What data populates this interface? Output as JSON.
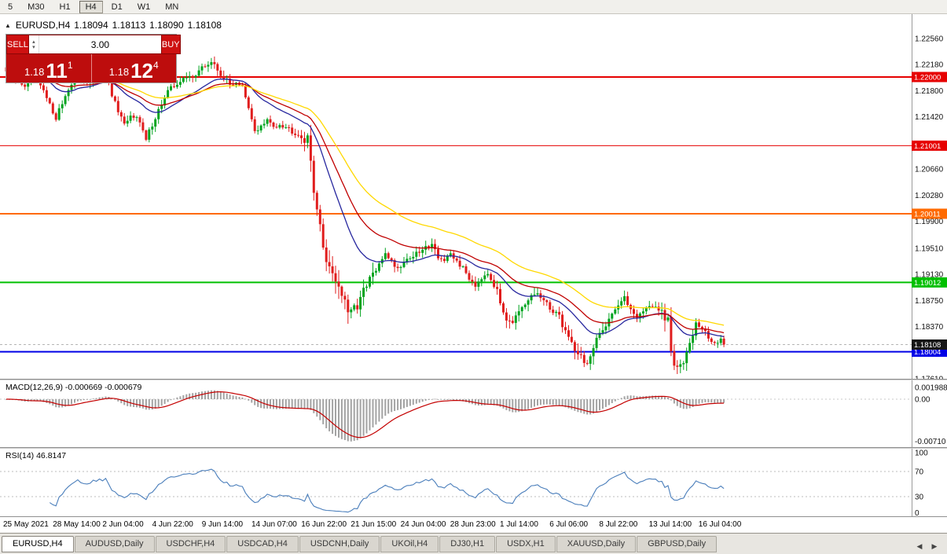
{
  "colors": {
    "up": "#00a31e",
    "down": "#e01d1d",
    "macd_hist": "#a3a3a3",
    "macd_signal": "#c40000",
    "rsi_line": "#4a7ebb",
    "axis_line": "#9b9b9b"
  },
  "toolbar": {
    "periods": [
      "5",
      "M30",
      "H1",
      "H4",
      "D1",
      "W1",
      "MN"
    ],
    "active": "H4"
  },
  "header": {
    "symbol_period": "EURUSD,H4",
    "open": "1.18094",
    "high": "1.18113",
    "low": "1.18090",
    "close": "1.18108"
  },
  "one_click": {
    "sell_label": "SELL",
    "buy_label": "BUY",
    "volume": "3.00",
    "bid": {
      "big": "1.18",
      "pips": "11",
      "sup": "1"
    },
    "ask": {
      "big": "1.18",
      "pips": "12",
      "sup": "4"
    }
  },
  "macd": {
    "label": "MACD(12,26,9) -0.000669 -0.000679",
    "ticks": [
      "0.001988",
      "0.00",
      "-0.00710"
    ]
  },
  "rsi": {
    "label": "RSI(14) 46.8147",
    "levels": [
      70,
      30
    ],
    "ticks": [
      {
        "text": "100",
        "v": 100
      },
      {
        "text": "70",
        "v": 70
      },
      {
        "text": "30",
        "v": 30
      },
      {
        "text": "0",
        "v": 0
      }
    ]
  },
  "tabs": {
    "items": [
      "EURUSD,H4",
      "AUDUSD,Daily",
      "USDCHF,H4",
      "USDCAD,H4",
      "USDCNH,Daily",
      "UKOil,H4",
      "DJ30,H1",
      "USDX,H1",
      "XAUUSD,Daily",
      "GBPUSD,Daily"
    ],
    "active_index": 0
  },
  "chart_data": {
    "type": "candlestick",
    "symbol": "EURUSD",
    "timeframe": "H4",
    "bar_count": 232,
    "price_range_top": 1.2256,
    "price_axis_ticks": [
      "1.22560",
      "1.22180",
      "1.21800",
      "1.21420",
      "1.20660",
      "1.20280",
      "1.19900",
      "1.19510",
      "1.19130",
      "1.18750",
      "1.18370",
      "1.17610"
    ],
    "levels": [
      {
        "label": "1.22000",
        "price": 1.22,
        "color": "#e60000",
        "width": 2
      },
      {
        "label": "1.21001",
        "price": 1.21001,
        "color": "#e60000",
        "width": 1
      },
      {
        "label": "1.20011",
        "price": 1.20011,
        "color": "#ff6a00",
        "width": 2
      },
      {
        "label": "1.19012",
        "price": 1.19012,
        "color": "#00c000",
        "width": 2
      },
      {
        "label": "1.18004",
        "price": 1.18004,
        "color": "#0000e6",
        "width": 2
      }
    ],
    "current_price": {
      "label": "1.18108",
      "price": 1.18108,
      "badge_color": "#161616"
    },
    "x_labels": [
      "25 May 2021",
      "28 May 14:00",
      "2 Jun 04:00",
      "4 Jun 22:00",
      "9 Jun 14:00",
      "14 Jun 07:00",
      "16 Jun 22:00",
      "21 Jun 15:00",
      "24 Jun 04:00",
      "28 Jun 23:00",
      "1 Jul 14:00",
      "6 Jul 06:00",
      "8 Jul 22:00",
      "13 Jul 14:00",
      "16 Jul 04:00"
    ],
    "moving_averages": [
      {
        "name": "fast",
        "period": 21,
        "color": "#26269e"
      },
      {
        "name": "mid",
        "period": 34,
        "color": "#c00000"
      },
      {
        "name": "slow",
        "period": 55,
        "color": "#ffd800"
      }
    ],
    "indicators": {
      "macd": {
        "params": "12,26,9",
        "main": -0.000669,
        "signal": -0.000679
      },
      "rsi": {
        "period": 14,
        "value": 46.8147
      }
    },
    "vol_zones": [
      [
        95,
        118,
        2.4
      ],
      [
        158,
        170,
        1.5
      ],
      [
        178,
        192,
        1.7
      ],
      [
        211,
        221,
        2.2
      ]
    ],
    "close_anchors": [
      [
        0,
        1.2208
      ],
      [
        3,
        1.2196
      ],
      [
        6,
        1.2188
      ],
      [
        9,
        1.2201
      ],
      [
        12,
        1.2178
      ],
      [
        14,
        1.2158
      ],
      [
        16,
        1.2142
      ],
      [
        18,
        1.2162
      ],
      [
        20,
        1.2184
      ],
      [
        23,
        1.2199
      ],
      [
        26,
        1.2193
      ],
      [
        29,
        1.2201
      ],
      [
        32,
        1.2207
      ],
      [
        34,
        1.2175
      ],
      [
        36,
        1.2148
      ],
      [
        38,
        1.2128
      ],
      [
        40,
        1.2142
      ],
      [
        42,
        1.2146
      ],
      [
        44,
        1.212
      ],
      [
        45,
        1.2108
      ],
      [
        47,
        1.2132
      ],
      [
        49,
        1.2152
      ],
      [
        52,
        1.2178
      ],
      [
        55,
        1.2192
      ],
      [
        58,
        1.2198
      ],
      [
        61,
        1.2205
      ],
      [
        64,
        1.2216
      ],
      [
        66,
        1.2222
      ],
      [
        68,
        1.221
      ],
      [
        70,
        1.2199
      ],
      [
        72,
        1.2188
      ],
      [
        74,
        1.2194
      ],
      [
        76,
        1.2185
      ],
      [
        78,
        1.2152
      ],
      [
        80,
        1.2122
      ],
      [
        82,
        1.2128
      ],
      [
        84,
        1.2136
      ],
      [
        86,
        1.2128
      ],
      [
        88,
        1.2133
      ],
      [
        90,
        1.2128
      ],
      [
        92,
        1.2122
      ],
      [
        94,
        1.2118
      ],
      [
        96,
        1.2112
      ],
      [
        97,
        1.2105
      ],
      [
        98,
        1.2078
      ],
      [
        99,
        1.2042
      ],
      [
        100,
        1.2008
      ],
      [
        101,
        1.1978
      ],
      [
        102,
        1.1952
      ],
      [
        103,
        1.1938
      ],
      [
        104,
        1.1925
      ],
      [
        105,
        1.1918
      ],
      [
        106,
        1.1908
      ],
      [
        107,
        1.1895
      ],
      [
        108,
        1.1885
      ],
      [
        109,
        1.1868
      ],
      [
        110,
        1.1858
      ],
      [
        111,
        1.1852
      ],
      [
        112,
        1.1862
      ],
      [
        113,
        1.1872
      ],
      [
        114,
        1.1878
      ],
      [
        115,
        1.1885
      ],
      [
        116,
        1.1892
      ],
      [
        117,
        1.1905
      ],
      [
        118,
        1.1912
      ],
      [
        120,
        1.1925
      ],
      [
        122,
        1.1946
      ],
      [
        124,
        1.1932
      ],
      [
        126,
        1.1922
      ],
      [
        128,
        1.1932
      ],
      [
        130,
        1.1938
      ],
      [
        132,
        1.1942
      ],
      [
        134,
        1.1948
      ],
      [
        136,
        1.1955
      ],
      [
        137,
        1.196
      ],
      [
        138,
        1.1948
      ],
      [
        139,
        1.194
      ],
      [
        141,
        1.1932
      ],
      [
        143,
        1.1939
      ],
      [
        145,
        1.1933
      ],
      [
        147,
        1.1921
      ],
      [
        149,
        1.1908
      ],
      [
        151,
        1.1898
      ],
      [
        153,
        1.191
      ],
      [
        155,
        1.1917
      ],
      [
        157,
        1.1898
      ],
      [
        159,
        1.1872
      ],
      [
        161,
        1.1852
      ],
      [
        163,
        1.1846
      ],
      [
        165,
        1.1853
      ],
      [
        167,
        1.1866
      ],
      [
        169,
        1.188
      ],
      [
        171,
        1.1886
      ],
      [
        173,
        1.1873
      ],
      [
        175,
        1.1863
      ],
      [
        177,
        1.1858
      ],
      [
        179,
        1.1841
      ],
      [
        181,
        1.1822
      ],
      [
        183,
        1.1806
      ],
      [
        185,
        1.1793
      ],
      [
        187,
        1.1783
      ],
      [
        189,
        1.1801
      ],
      [
        191,
        1.1826
      ],
      [
        193,
        1.1841
      ],
      [
        195,
        1.1858
      ],
      [
        197,
        1.1869
      ],
      [
        199,
        1.1877
      ],
      [
        201,
        1.1863
      ],
      [
        203,
        1.1853
      ],
      [
        205,
        1.1859
      ],
      [
        207,
        1.1869
      ],
      [
        209,
        1.1863
      ],
      [
        211,
        1.1856
      ],
      [
        213,
        1.1841
      ],
      [
        214,
        1.1802
      ],
      [
        215,
        1.178
      ],
      [
        216,
        1.1773
      ],
      [
        217,
        1.178
      ],
      [
        218,
        1.1792
      ],
      [
        219,
        1.1806
      ],
      [
        220,
        1.1823
      ],
      [
        222,
        1.1841
      ],
      [
        224,
        1.1833
      ],
      [
        226,
        1.1821
      ],
      [
        228,
        1.1813
      ],
      [
        230,
        1.1815
      ],
      [
        231,
        1.18108
      ]
    ]
  }
}
